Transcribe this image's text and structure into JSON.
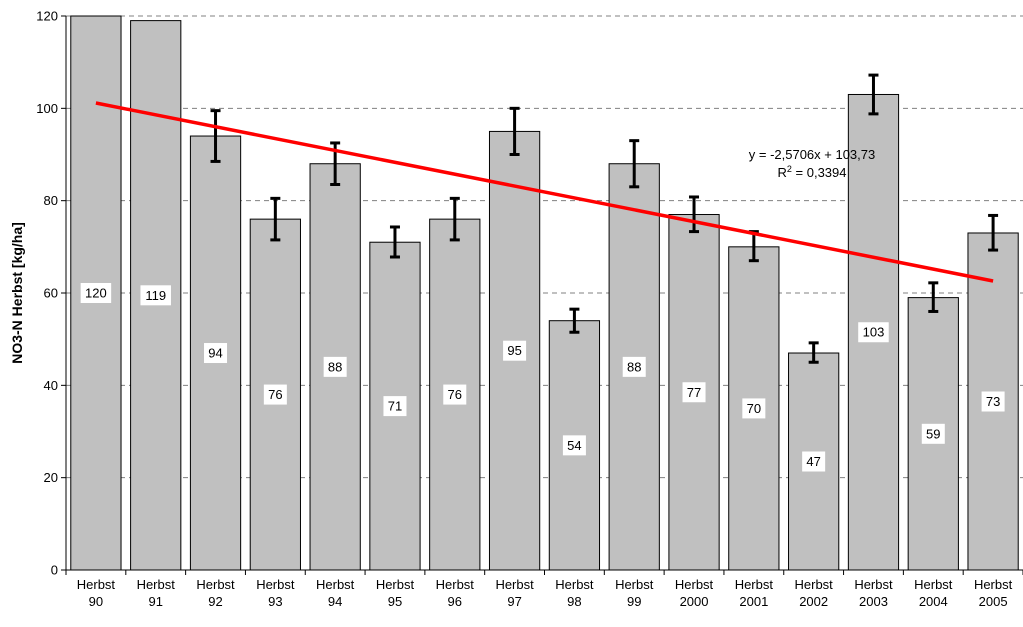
{
  "chart_data": {
    "type": "bar",
    "categories": [
      [
        "Herbst",
        "90"
      ],
      [
        "Herbst",
        "91"
      ],
      [
        "Herbst",
        "92"
      ],
      [
        "Herbst",
        "93"
      ],
      [
        "Herbst",
        "94"
      ],
      [
        "Herbst",
        "95"
      ],
      [
        "Herbst",
        "96"
      ],
      [
        "Herbst",
        "97"
      ],
      [
        "Herbst",
        "98"
      ],
      [
        "Herbst",
        "99"
      ],
      [
        "Herbst",
        "2000"
      ],
      [
        "Herbst",
        "2001"
      ],
      [
        "Herbst",
        "2002"
      ],
      [
        "Herbst",
        "2003"
      ],
      [
        "Herbst",
        "2004"
      ],
      [
        "Herbst",
        "2005"
      ]
    ],
    "values": [
      120,
      119,
      94,
      76,
      88,
      71,
      76,
      95,
      54,
      88,
      77,
      70,
      47,
      103,
      59,
      73
    ],
    "data_labels": [
      "120",
      "119",
      "94",
      "76",
      "88",
      "71",
      "76",
      "95",
      "54",
      "88",
      "77",
      "70",
      "47",
      "103",
      "59",
      "73"
    ],
    "error_bars": [
      null,
      null,
      [
        88.5,
        99.5
      ],
      [
        71.5,
        80.5
      ],
      [
        83.5,
        92.5
      ],
      [
        67.8,
        74.3
      ],
      [
        71.5,
        80.5
      ],
      [
        90,
        100
      ],
      [
        51.5,
        56.5
      ],
      [
        83,
        93
      ],
      [
        73.3,
        80.8
      ],
      [
        67,
        73.3
      ],
      [
        45,
        49.2
      ],
      [
        98.8,
        107.2
      ],
      [
        56,
        62.2
      ],
      [
        69.3,
        76.8
      ]
    ],
    "title": "",
    "xlabel": "",
    "ylabel": "NO3-N Herbst [kg/ha]",
    "ylim": [
      0,
      120
    ],
    "yticks": [
      0,
      20,
      40,
      60,
      80,
      100,
      120
    ],
    "grid": "horizontal dashed",
    "trendline": {
      "slope": -2.5706,
      "intercept": 103.73,
      "equation_label": "y = -2,5706x + 103,73",
      "r2_prefix": "R",
      "r2_sup": "2",
      "r2_value": " = 0,3394"
    },
    "colors": {
      "bar_fill": "#c0c0c0",
      "bar_stroke": "#000000",
      "trendline": "#ff0000",
      "error_bar": "#000000",
      "grid": "#808080"
    }
  }
}
